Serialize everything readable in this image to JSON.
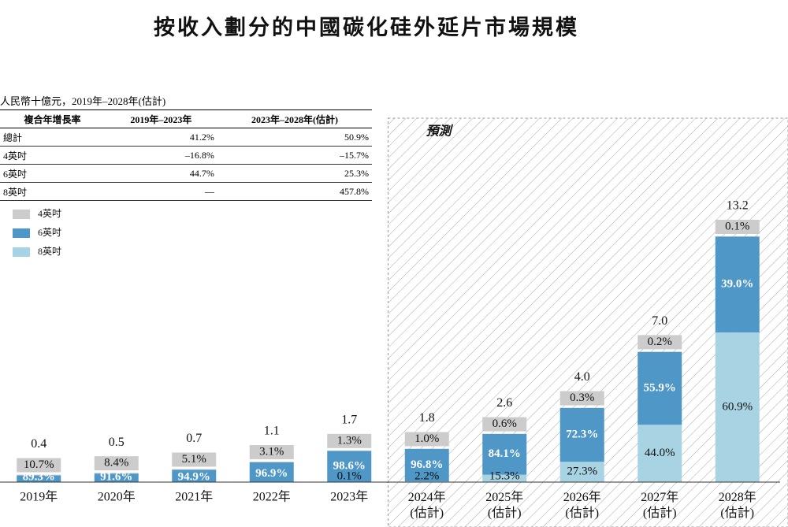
{
  "chart_data": {
    "type": "stacked_share_bar",
    "title": "按收入劃分的中國碳化硅外延片市場規模",
    "categories": [
      "2019年",
      "2020年",
      "2021年",
      "2022年",
      "2023年",
      "2024年(估計)",
      "2025年(估計)",
      "2026年(估計)",
      "2027年(估計)",
      "2028年(估計)"
    ],
    "totals": {
      "values": [
        0.4,
        0.5,
        0.7,
        1.1,
        1.7,
        1.8,
        2.6,
        4.0,
        7.0,
        13.2
      ],
      "value_labels": [
        "0.4",
        "0.5",
        "0.7",
        "1.1",
        "1.7",
        "1.8",
        "2.6",
        "4.0",
        "7.0",
        "13.2"
      ]
    },
    "series": [
      {
        "name": "4英吋",
        "color": "#cccccc",
        "values": [
          10.7,
          8.4,
          5.1,
          3.1,
          1.3,
          1.0,
          0.6,
          0.3,
          0.2,
          0.1
        ],
        "value_labels": [
          "10.7%",
          "8.4%",
          "5.1%",
          "3.1%",
          "1.3%",
          "1.0%",
          "0.6%",
          "0.3%",
          "0.2%",
          "0.1%"
        ]
      },
      {
        "name": "6英吋",
        "color": "#4f97c7",
        "values": [
          89.3,
          91.6,
          94.9,
          96.9,
          98.6,
          96.8,
          84.1,
          72.3,
          55.9,
          39.0
        ],
        "value_labels": [
          "89.3%",
          "91.6%",
          "94.9%",
          "96.9%",
          "98.6%",
          "96.8%",
          "84.1%",
          "72.3%",
          "55.9%",
          "39.0%"
        ]
      },
      {
        "name": "8英吋",
        "color": "#a8d3e3",
        "values": [
          null,
          null,
          null,
          null,
          0.1,
          2.2,
          15.3,
          27.3,
          44.0,
          60.9
        ],
        "value_labels": [
          null,
          null,
          null,
          null,
          "0.1%",
          "2.2%",
          "15.3%",
          "27.3%",
          "44.0%",
          "60.9%"
        ]
      }
    ],
    "forecast_region": {
      "label": "預測",
      "from_category": "2024年(估計)"
    },
    "legend": "upper left"
  },
  "table": {
    "caption": "人民幣十億元，2019年–2028年(估計)",
    "header": [
      "複合年增長率",
      "2019年–2023年",
      "2023年–2028年(估計)"
    ],
    "rows": [
      [
        "總計",
        "41.2%",
        "50.9%"
      ],
      [
        "4英吋",
        "–16.8%",
        "–15.7%"
      ],
      [
        "6英吋",
        "44.7%",
        "25.3%"
      ],
      [
        "8英吋",
        "—",
        "457.8%"
      ]
    ]
  }
}
